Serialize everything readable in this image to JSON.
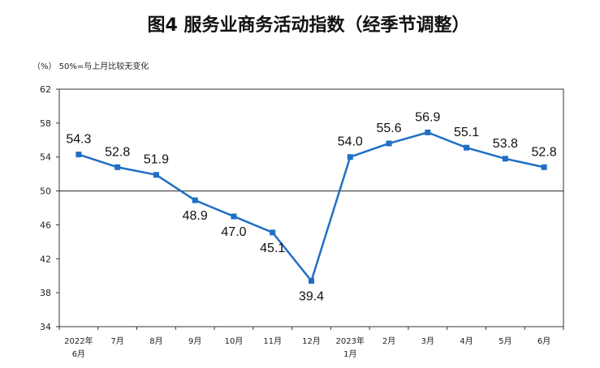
{
  "chart_data": {
    "type": "line",
    "title": "图4  服务业商务活动指数（经季节调整）",
    "unit_note": "（%）  50%=与上月比较无变化",
    "categories": [
      [
        "2022年",
        "6月"
      ],
      [
        "7月"
      ],
      [
        "8月"
      ],
      [
        "9月"
      ],
      [
        "10月"
      ],
      [
        "11月"
      ],
      [
        "12月"
      ],
      [
        "2023年",
        "1月"
      ],
      [
        "2月"
      ],
      [
        "3月"
      ],
      [
        "4月"
      ],
      [
        "5月"
      ],
      [
        "6月"
      ]
    ],
    "values": [
      54.3,
      52.8,
      51.9,
      48.9,
      47.0,
      45.1,
      39.4,
      54.0,
      55.6,
      56.9,
      55.1,
      53.8,
      52.8
    ],
    "data_labels": [
      "54.3",
      "52.8",
      "51.9",
      "48.9",
      "47.0",
      "45.1",
      "39.4",
      "54.0",
      "55.6",
      "56.9",
      "55.1",
      "53.8",
      "52.8"
    ],
    "ylim": [
      34,
      62
    ],
    "yticks": [
      34,
      38,
      42,
      46,
      50,
      54,
      58,
      62
    ],
    "reference_line": 50,
    "series_color": "#1f6fc5",
    "grid": false
  }
}
